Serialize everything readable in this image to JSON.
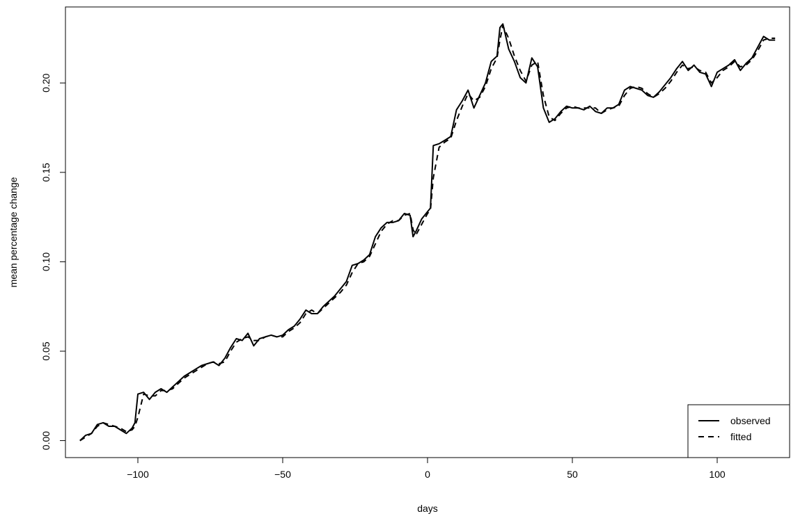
{
  "chart_data": {
    "type": "line",
    "title": "",
    "xlabel": "days",
    "ylabel": "mean percentage change",
    "xlim": [
      -125,
      125
    ],
    "ylim": [
      -0.0095,
      0.2425
    ],
    "xticks": [
      -100,
      -50,
      0,
      50,
      100
    ],
    "xtick_labels": [
      "−100",
      "−50",
      "0",
      "50",
      "100"
    ],
    "yticks": [
      0.0,
      0.05,
      0.1,
      0.15,
      0.2
    ],
    "ytick_labels": [
      "0.00",
      "0.05",
      "0.10",
      "0.15",
      "0.20"
    ],
    "grid": false,
    "legend_position": "bottom-right",
    "series": [
      {
        "name": "observed",
        "line_style": "solid",
        "x": [
          -120,
          -118,
          -116,
          -114,
          -112,
          -110,
          -108,
          -106,
          -104,
          -102,
          -101,
          -100,
          -98,
          -96,
          -94,
          -92,
          -90,
          -88,
          -86,
          -84,
          -82,
          -80,
          -78,
          -76,
          -74,
          -72,
          -70,
          -68,
          -66,
          -64,
          -62,
          -60,
          -58,
          -56,
          -54,
          -52,
          -50,
          -48,
          -46,
          -44,
          -42,
          -40,
          -38,
          -36,
          -34,
          -32,
          -30,
          -28,
          -26,
          -24,
          -22,
          -20,
          -18,
          -16,
          -14,
          -12,
          -10,
          -8,
          -6,
          -5,
          -4,
          -2,
          0,
          1,
          2,
          4,
          6,
          8,
          10,
          12,
          14,
          16,
          18,
          20,
          22,
          24,
          25,
          26,
          28,
          30,
          32,
          34,
          36,
          38,
          40,
          42,
          44,
          46,
          48,
          50,
          52,
          54,
          56,
          58,
          60,
          62,
          64,
          66,
          68,
          70,
          72,
          74,
          76,
          78,
          80,
          82,
          84,
          86,
          88,
          90,
          92,
          94,
          96,
          98,
          100,
          102,
          104,
          106,
          108,
          110,
          112,
          114,
          116,
          118,
          120
        ],
        "values": [
          0.0,
          0.003,
          0.004,
          0.009,
          0.01,
          0.008,
          0.008,
          0.006,
          0.004,
          0.007,
          0.01,
          0.026,
          0.027,
          0.023,
          0.027,
          0.029,
          0.027,
          0.03,
          0.033,
          0.036,
          0.038,
          0.04,
          0.042,
          0.043,
          0.044,
          0.042,
          0.046,
          0.052,
          0.057,
          0.056,
          0.06,
          0.053,
          0.057,
          0.058,
          0.059,
          0.058,
          0.059,
          0.062,
          0.064,
          0.068,
          0.073,
          0.071,
          0.071,
          0.075,
          0.078,
          0.081,
          0.085,
          0.089,
          0.098,
          0.099,
          0.101,
          0.104,
          0.114,
          0.119,
          0.122,
          0.122,
          0.123,
          0.127,
          0.126,
          0.114,
          0.117,
          0.124,
          0.128,
          0.13,
          0.165,
          0.166,
          0.168,
          0.17,
          0.185,
          0.19,
          0.196,
          0.186,
          0.193,
          0.2,
          0.212,
          0.215,
          0.231,
          0.233,
          0.219,
          0.212,
          0.203,
          0.2,
          0.214,
          0.209,
          0.186,
          0.178,
          0.18,
          0.184,
          0.187,
          0.186,
          0.186,
          0.185,
          0.187,
          0.184,
          0.183,
          0.186,
          0.186,
          0.188,
          0.196,
          0.198,
          0.197,
          0.196,
          0.193,
          0.192,
          0.195,
          0.199,
          0.203,
          0.208,
          0.212,
          0.207,
          0.21,
          0.206,
          0.205,
          0.198,
          0.206,
          0.208,
          0.21,
          0.213,
          0.207,
          0.211,
          0.214,
          0.22,
          0.226,
          0.224,
          0.224
        ]
      },
      {
        "name": "fitted",
        "line_style": "dashed",
        "x": [
          -120,
          -118,
          -116,
          -114,
          -112,
          -110,
          -108,
          -106,
          -104,
          -102,
          -101,
          -100,
          -98,
          -96,
          -94,
          -92,
          -90,
          -88,
          -86,
          -84,
          -82,
          -80,
          -78,
          -76,
          -74,
          -72,
          -70,
          -68,
          -66,
          -64,
          -62,
          -60,
          -58,
          -56,
          -54,
          -52,
          -50,
          -48,
          -46,
          -44,
          -42,
          -40,
          -38,
          -36,
          -34,
          -32,
          -30,
          -28,
          -26,
          -24,
          -22,
          -20,
          -18,
          -16,
          -14,
          -12,
          -10,
          -8,
          -6,
          -5,
          -4,
          -2,
          0,
          1,
          2,
          4,
          6,
          8,
          10,
          12,
          14,
          16,
          18,
          20,
          22,
          24,
          25,
          26,
          28,
          30,
          32,
          34,
          36,
          38,
          40,
          42,
          44,
          46,
          48,
          50,
          52,
          54,
          56,
          58,
          60,
          62,
          64,
          66,
          68,
          70,
          72,
          74,
          76,
          78,
          80,
          82,
          84,
          86,
          88,
          90,
          92,
          94,
          96,
          98,
          100,
          102,
          104,
          106,
          108,
          110,
          112,
          114,
          116,
          118,
          120
        ],
        "values": [
          0.0,
          0.002,
          0.004,
          0.008,
          0.01,
          0.009,
          0.008,
          0.007,
          0.005,
          0.006,
          0.008,
          0.013,
          0.026,
          0.025,
          0.025,
          0.028,
          0.028,
          0.029,
          0.032,
          0.035,
          0.037,
          0.039,
          0.041,
          0.043,
          0.044,
          0.043,
          0.044,
          0.05,
          0.055,
          0.057,
          0.058,
          0.056,
          0.056,
          0.058,
          0.059,
          0.058,
          0.058,
          0.061,
          0.063,
          0.066,
          0.071,
          0.073,
          0.071,
          0.074,
          0.077,
          0.08,
          0.083,
          0.087,
          0.094,
          0.099,
          0.1,
          0.103,
          0.11,
          0.117,
          0.121,
          0.123,
          0.123,
          0.126,
          0.127,
          0.118,
          0.115,
          0.121,
          0.127,
          0.129,
          0.147,
          0.164,
          0.167,
          0.169,
          0.179,
          0.187,
          0.194,
          0.19,
          0.192,
          0.198,
          0.208,
          0.214,
          0.224,
          0.232,
          0.225,
          0.215,
          0.207,
          0.201,
          0.21,
          0.212,
          0.193,
          0.181,
          0.179,
          0.183,
          0.186,
          0.187,
          0.186,
          0.186,
          0.186,
          0.186,
          0.183,
          0.185,
          0.186,
          0.187,
          0.193,
          0.197,
          0.198,
          0.197,
          0.194,
          0.192,
          0.194,
          0.197,
          0.201,
          0.206,
          0.21,
          0.208,
          0.209,
          0.207,
          0.206,
          0.2,
          0.203,
          0.207,
          0.209,
          0.212,
          0.209,
          0.21,
          0.213,
          0.218,
          0.224,
          0.225,
          0.225
        ]
      }
    ]
  }
}
